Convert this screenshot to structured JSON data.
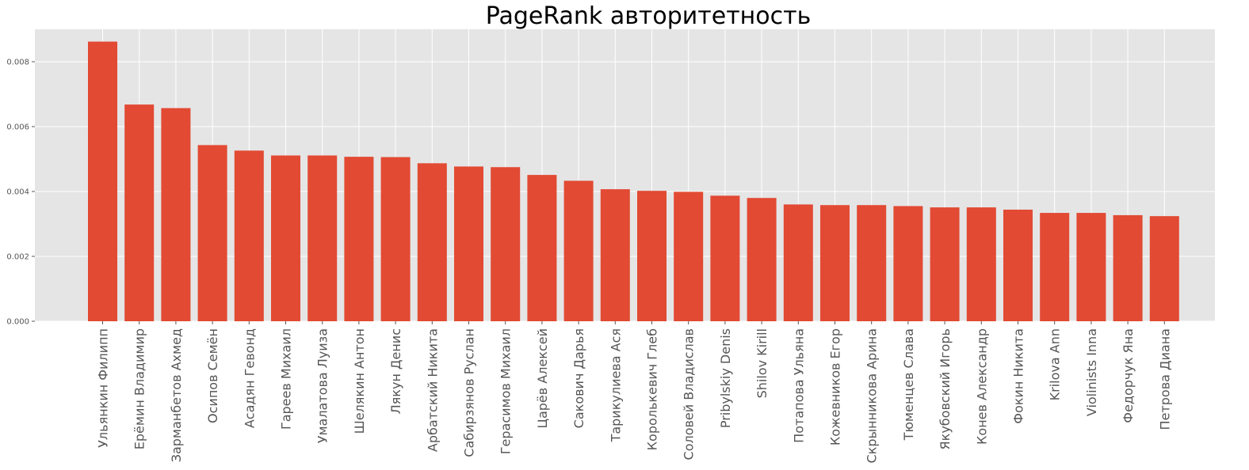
{
  "chart_data": {
    "type": "bar",
    "title": "PageRank авторитетность",
    "xlabel": "",
    "ylabel": "",
    "ylim": [
      0,
      0.009
    ],
    "yticks": [
      "0.000",
      "0.002",
      "0.004",
      "0.006",
      "0.008"
    ],
    "grid": true,
    "bar_color": "#E24A33",
    "background_color": "#E5E5E5",
    "categories": [
      "Ульянкин Филипп",
      "Ерёмин Владимир",
      "Зарманбетов Ахмед",
      "Осипов Семён",
      "Асадян Гевонд",
      "Гареев Михаил",
      "Умалатова Луиза",
      "Шелякин Антон",
      "Лякун Денис",
      "Арбатский Никита",
      "Сабирзянов Руслан",
      "Герасимов Михаил",
      "Царёв Алексей",
      "Сакович Дарья",
      "Тарикулиева Ася",
      "Королькевич Глеб",
      "Соловей Владислав",
      "Pribylskiy Denis",
      "Shilov Kirill",
      "Потапова Ульяна",
      "Кожевников Егор",
      "Скрынникова Арина",
      "Тюменцев Слава",
      "Якубовский Игорь",
      "Конев Александр",
      "Фокин Никита",
      "Krilova Ann",
      "Violinists Inna",
      "Федорчук Яна",
      "Петрова Диана"
    ],
    "values": [
      0.00862,
      0.00668,
      0.00657,
      0.00543,
      0.00526,
      0.00511,
      0.00511,
      0.00507,
      0.00506,
      0.00487,
      0.00477,
      0.00475,
      0.00451,
      0.00433,
      0.00407,
      0.00402,
      0.00399,
      0.00387,
      0.0038,
      0.0036,
      0.00358,
      0.00358,
      0.00355,
      0.00351,
      0.00351,
      0.00344,
      0.00334,
      0.00334,
      0.00327,
      0.00324
    ]
  }
}
